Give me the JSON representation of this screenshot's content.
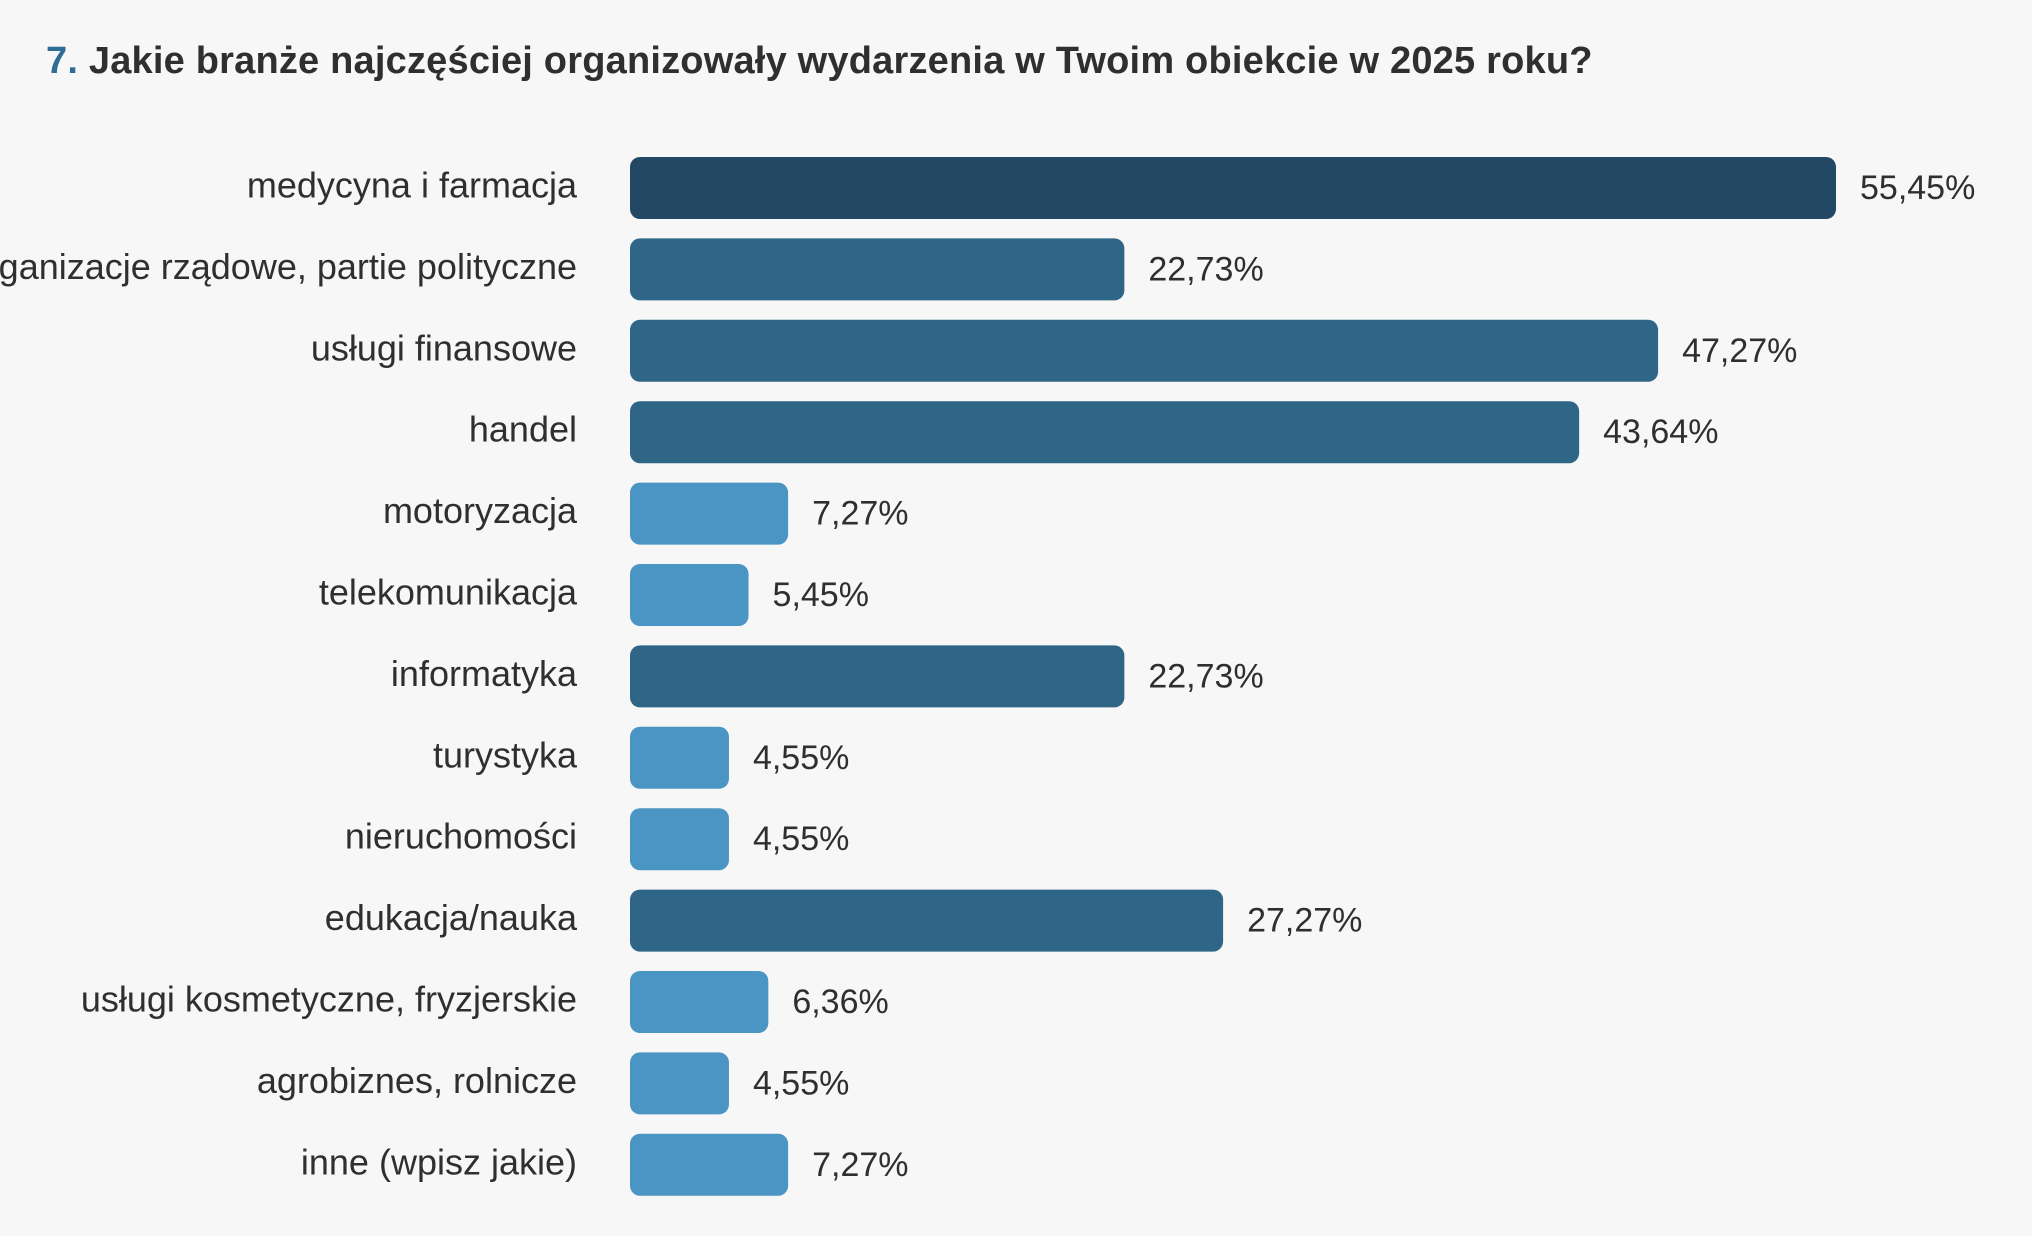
{
  "title": {
    "number": "7.",
    "text": "Jakie branże najczęściej organizowały wydarzenia w Twoim obiekcie w 2025 roku?"
  },
  "colors": {
    "background": "#f7f7f7",
    "bar_darkest": "#234863",
    "bar_dark": "#2f6586",
    "bar_light": "#4a95c4",
    "title_number": "#2e6d95"
  },
  "chart_data": {
    "type": "bar",
    "orientation": "horizontal",
    "title": "Jakie branże najczęściej organizowały wydarzenia w Twoim obiekcie w 2025 roku?",
    "categories": [
      "medycyna i farmacja",
      "organizacje rządowe, partie polityczne",
      "usługi finansowe",
      "handel",
      "motoryzacja",
      "telekomunikacja",
      "informatyka",
      "turystyka",
      "nieruchomości",
      "edukacja/nauka",
      "usługi kosmetyczne, fryzjerskie",
      "agrobiznes, rolnicze",
      "inne (wpisz jakie)"
    ],
    "values": [
      55.45,
      22.73,
      47.27,
      43.64,
      7.27,
      5.45,
      22.73,
      4.55,
      4.55,
      27.27,
      6.36,
      4.55,
      7.27
    ],
    "value_labels": [
      "55,45%",
      "22,73%",
      "47,27%",
      "43,64%",
      "7,27%",
      "5,45%",
      "22,73%",
      "4,55%",
      "4,55%",
      "27,27%",
      "6,36%",
      "4,55%",
      "7,27%"
    ],
    "bar_colors": [
      "#234863",
      "#2f6586",
      "#2f6586",
      "#2f6586",
      "#4a95c4",
      "#4a95c4",
      "#2f6586",
      "#4a95c4",
      "#4a95c4",
      "#2f6586",
      "#4a95c4",
      "#4a95c4",
      "#4a95c4"
    ],
    "xlim": [
      0,
      55.45
    ],
    "xlabel": "",
    "ylabel": "",
    "grid": false,
    "legend": "none"
  }
}
